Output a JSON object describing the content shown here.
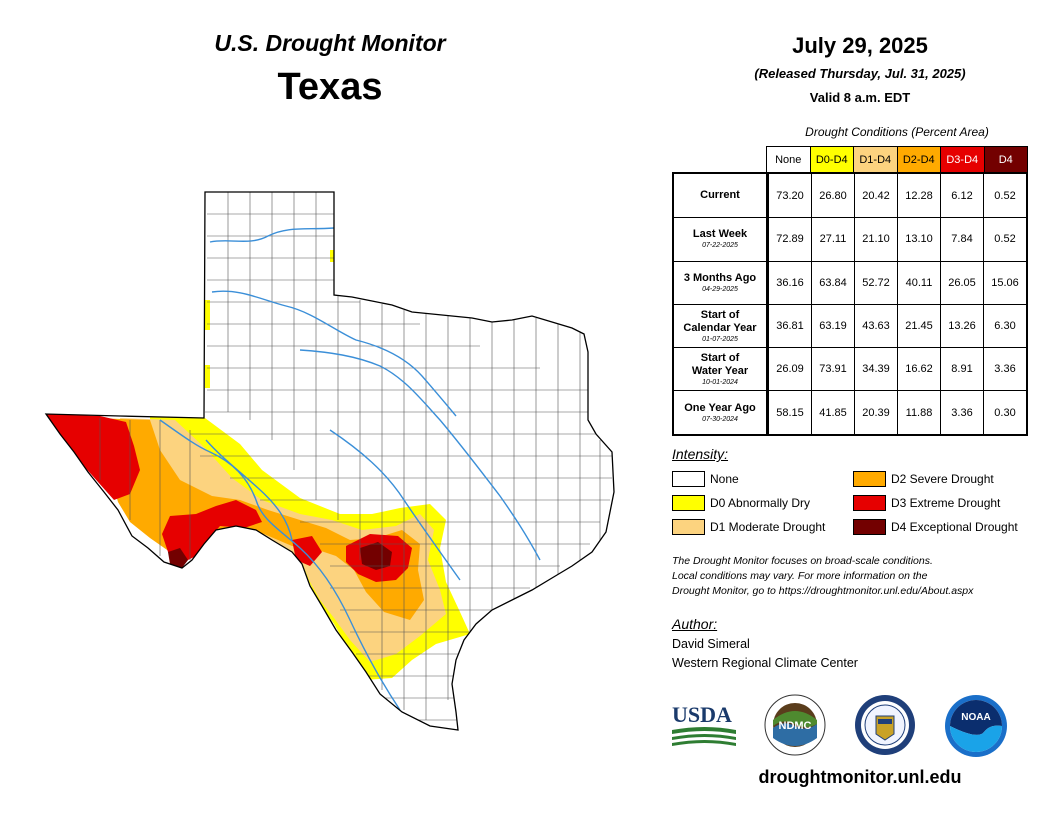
{
  "header": {
    "map_title": "U.S. Drought Monitor",
    "state": "Texas",
    "date": "July 29, 2025",
    "released": "(Released Thursday, Jul. 31, 2025)",
    "valid": "Valid 8 a.m. EDT"
  },
  "table": {
    "caption": "Drought Conditions (Percent Area)",
    "columns": [
      {
        "label": "None",
        "bg": "#ffffff",
        "fg": "#000000"
      },
      {
        "label": "D0-D4",
        "bg": "#ffff00",
        "fg": "#000000"
      },
      {
        "label": "D1-D4",
        "bg": "#fcd37f",
        "fg": "#000000"
      },
      {
        "label": "D2-D4",
        "bg": "#ffaa00",
        "fg": "#000000"
      },
      {
        "label": "D3-D4",
        "bg": "#e60000",
        "fg": "#ffffff"
      },
      {
        "label": "D4",
        "bg": "#730000",
        "fg": "#ffffff"
      }
    ],
    "rows": [
      {
        "label_lines": [
          "Current"
        ],
        "date": "",
        "values": [
          "73.20",
          "26.80",
          "20.42",
          "12.28",
          "6.12",
          "0.52"
        ]
      },
      {
        "label_lines": [
          "Last Week"
        ],
        "date": "07-22-2025",
        "values": [
          "72.89",
          "27.11",
          "21.10",
          "13.10",
          "7.84",
          "0.52"
        ]
      },
      {
        "label_lines": [
          "3 Months Ago"
        ],
        "date": "04-29-2025",
        "values": [
          "36.16",
          "63.84",
          "52.72",
          "40.11",
          "26.05",
          "15.06"
        ]
      },
      {
        "label_lines": [
          "Start of",
          "Calendar Year"
        ],
        "date": "01-07-2025",
        "values": [
          "36.81",
          "63.19",
          "43.63",
          "21.45",
          "13.26",
          "6.30"
        ]
      },
      {
        "label_lines": [
          "Start of",
          "Water Year"
        ],
        "date": "10-01-2024",
        "values": [
          "26.09",
          "73.91",
          "34.39",
          "16.62",
          "8.91",
          "3.36"
        ]
      },
      {
        "label_lines": [
          "One Year Ago"
        ],
        "date": "07-30-2024",
        "values": [
          "58.15",
          "41.85",
          "20.39",
          "11.88",
          "3.36",
          "0.30"
        ]
      }
    ]
  },
  "legend": {
    "title": "Intensity:",
    "items": [
      {
        "label": "None",
        "color": "#ffffff"
      },
      {
        "label": "D0 Abnormally Dry",
        "color": "#ffff00"
      },
      {
        "label": "D1 Moderate Drought",
        "color": "#fcd37f"
      },
      {
        "label": "D2 Severe Drought",
        "color": "#ffaa00"
      },
      {
        "label": "D3 Extreme Drought",
        "color": "#e60000"
      },
      {
        "label": "D4 Exceptional Drought",
        "color": "#730000"
      }
    ]
  },
  "note": {
    "line1": "The Drought Monitor focuses on broad-scale conditions.",
    "line2": "Local conditions may vary. For more information on the",
    "line3": "Drought Monitor, go to https://droughtmonitor.unl.edu/About.aspx"
  },
  "author": {
    "title": "Author:",
    "name": "David Simeral",
    "org": "Western Regional Climate Center"
  },
  "logos": {
    "usda": "USDA",
    "ndmc": "NDMC",
    "noaa": "NOAA",
    "icons": [
      "usda-logo-icon",
      "ndmc-logo-icon",
      "doc-seal-icon",
      "noaa-logo-icon"
    ]
  },
  "footer": {
    "site": "droughtmonitor.unl.edu"
  },
  "colors": {
    "river": "#3b8fd8",
    "state_border": "#000000",
    "county_border": "#555555"
  }
}
